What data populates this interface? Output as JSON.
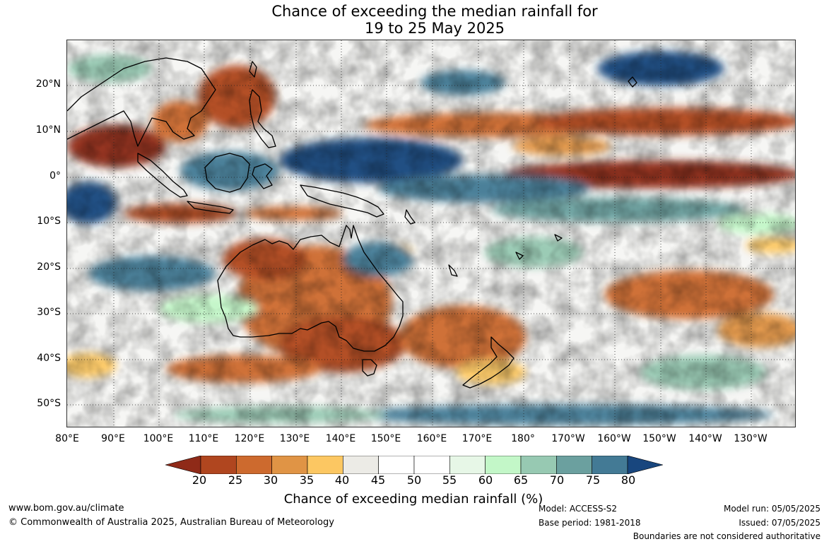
{
  "title": {
    "line1": "Chance of exceeding the median rainfall for",
    "line2": "19 to 25 May 2025"
  },
  "map": {
    "lat_labels": [
      "20°N",
      "10°N",
      "0°",
      "10°S",
      "20°S",
      "30°S",
      "40°S",
      "50°S"
    ],
    "lon_labels": [
      "80°E",
      "90°E",
      "100°E",
      "110°E",
      "120°E",
      "130°E",
      "140°E",
      "150°E",
      "160°E",
      "170°E",
      "180°",
      "170°W",
      "160°W",
      "150°W",
      "140°W",
      "130°W"
    ],
    "region": "Indo-Pacific and Australia"
  },
  "colorbar": {
    "ticks": [
      "20",
      "25",
      "30",
      "35",
      "40",
      "45",
      "50",
      "55",
      "60",
      "65",
      "70",
      "75",
      "80"
    ],
    "colors": [
      "#8f2a18",
      "#b0461f",
      "#cd6a2e",
      "#e09445",
      "#fcc762",
      "#ecebe6",
      "#ffffff",
      "#ffffff",
      "#e7f7e7",
      "#c3f7c8",
      "#97c9b2",
      "#6ba09f",
      "#437a95",
      "#18467e"
    ],
    "title": "Chance of exceeding median rainfall (%)"
  },
  "footer": {
    "website": "www.bom.gov.au/climate",
    "copyright": "© Commonwealth of Australia 2025, Australian Bureau of Meteorology",
    "model": "Model: ACCESS-S2",
    "base_period": "Base period: 1981-2018",
    "model_run": "Model run: 05/05/2025",
    "issued": "Issued: 07/05/2025",
    "disclaimer": "Boundaries are not considered authoritative"
  }
}
